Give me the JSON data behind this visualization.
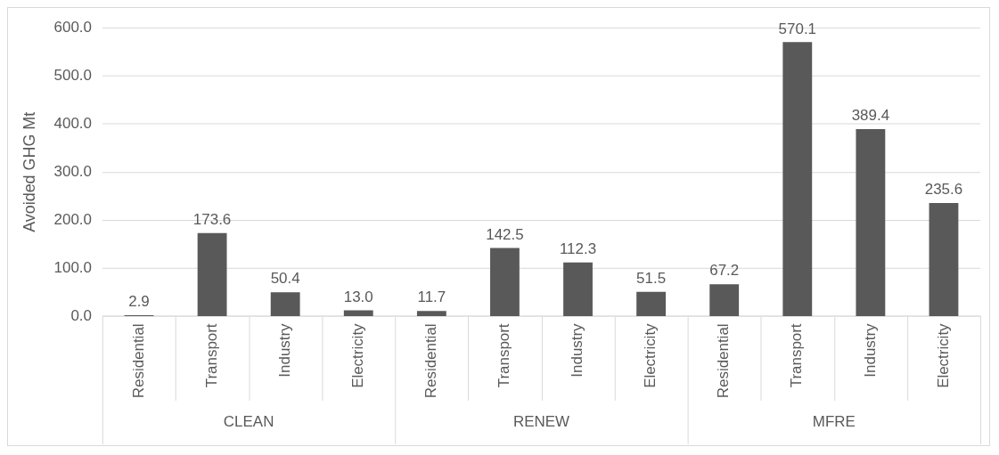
{
  "chart_data": {
    "type": "bar",
    "ylabel": "Avoided GHG Mt",
    "categories": [
      "Residential",
      "Transport",
      "Industry",
      "Electricity",
      "Residential",
      "Transport",
      "Industry",
      "Electricity",
      "Residential",
      "Transport",
      "Industry",
      "Electricity"
    ],
    "values": [
      2.9,
      173.6,
      50.4,
      13.0,
      11.7,
      142.5,
      112.3,
      51.5,
      67.2,
      570.1,
      389.4,
      235.6
    ],
    "color": "#595959",
    "ylim": [
      0,
      600
    ],
    "yticks": [
      {
        "value": 0,
        "label": "0.0"
      },
      {
        "value": 100,
        "label": "100.0"
      },
      {
        "value": 200,
        "label": "200.0"
      },
      {
        "value": 300,
        "label": "300.0"
      },
      {
        "value": 400,
        "label": "400.0"
      },
      {
        "value": 500,
        "label": "500.0"
      },
      {
        "value": 600,
        "label": "600.0"
      }
    ],
    "value_labels": [
      "2.9",
      "173.6",
      "50.4",
      "13.0",
      "11.7",
      "142.5",
      "112.3",
      "51.5",
      "67.2",
      "570.1",
      "389.4",
      "235.6"
    ],
    "grid": "y",
    "legend": false,
    "annotations": [
      "CLEAN",
      "RENEW",
      "MFRE"
    ]
  }
}
